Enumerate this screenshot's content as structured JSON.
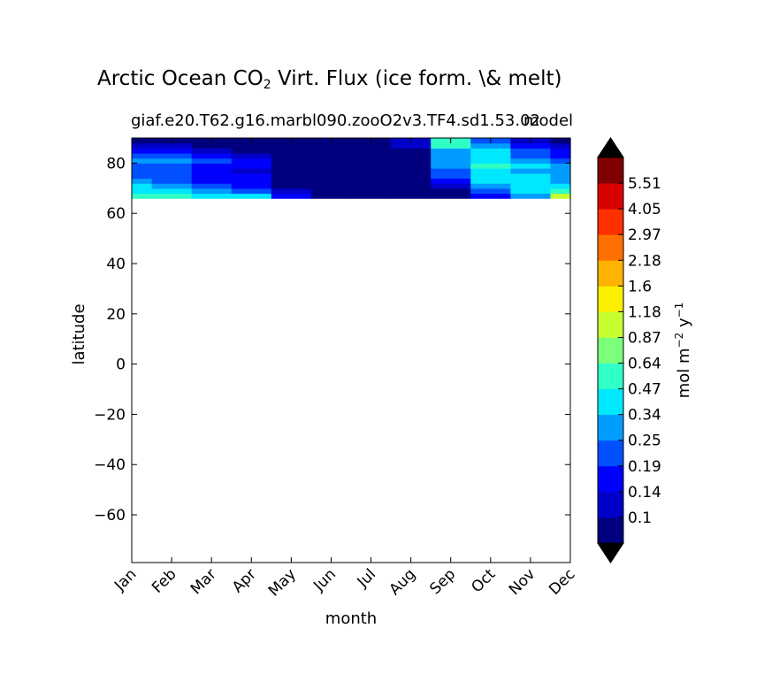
{
  "title_prefix": "Arctic Ocean CO",
  "title_sub": "2",
  "title_suffix": " Virt. Flux (ice form. \\& melt)",
  "subtitle_left": "giaf.e20.T62.g16.marbl090.zooO2v3.TF4.sd1.53.02",
  "subtitle_right": "model",
  "chart_data": {
    "type": "heatmap",
    "title": "Arctic Ocean CO2 Virt. Flux (ice form. \\& melt)",
    "xlabel": "month",
    "ylabel": "latitude",
    "x_ticks": [
      "Jan",
      "Feb",
      "Mar",
      "Apr",
      "May",
      "Jun",
      "Jul",
      "Aug",
      "Sep",
      "Oct",
      "Nov",
      "Dec"
    ],
    "y_ticks": [
      -60,
      -40,
      -20,
      0,
      20,
      40,
      60,
      80
    ],
    "ylim": [
      -79,
      90
    ],
    "data_lat_range": [
      66,
      90
    ],
    "colorbar": {
      "label": "mol m^-2 y^-1",
      "levels": [
        "0.1",
        "0.14",
        "0.19",
        "0.25",
        "0.34",
        "0.47",
        "0.64",
        "0.87",
        "1.18",
        "1.6",
        "2.18",
        "2.97",
        "4.05",
        "5.51"
      ],
      "colors": [
        "#00007f",
        "#0000c8",
        "#0000ff",
        "#0050ff",
        "#009cff",
        "#00e8ff",
        "#30ffc6",
        "#7cff7a",
        "#c6ff30",
        "#fbf000",
        "#ffb200",
        "#ff7000",
        "#ff3000",
        "#d90000",
        "#7f0000"
      ],
      "extend": "both"
    },
    "lats": [
      67,
      69,
      71,
      73,
      75,
      77,
      79,
      81,
      83,
      85,
      87,
      89
    ],
    "grid": [
      [
        6,
        6,
        5,
        5,
        2,
        0,
        0,
        0,
        0,
        2,
        4,
        8
      ],
      [
        5,
        5,
        4,
        3,
        1,
        0,
        0,
        0,
        0,
        3,
        5,
        6
      ],
      [
        5,
        4,
        3,
        2,
        0,
        0,
        0,
        0,
        1,
        4,
        5,
        5
      ],
      [
        4,
        3,
        2,
        2,
        0,
        0,
        0,
        0,
        2,
        5,
        5,
        4
      ],
      [
        3,
        3,
        2,
        2,
        0,
        0,
        0,
        0,
        3,
        5,
        5,
        4
      ],
      [
        3,
        3,
        2,
        1,
        0,
        0,
        0,
        0,
        3,
        5,
        4,
        4
      ],
      [
        3,
        3,
        2,
        2,
        0,
        0,
        0,
        0,
        4,
        6,
        5,
        4
      ],
      [
        4,
        4,
        3,
        2,
        0,
        0,
        0,
        0,
        4,
        5,
        4,
        3
      ],
      [
        3,
        3,
        2,
        1,
        0,
        0,
        0,
        0,
        4,
        5,
        3,
        2
      ],
      [
        2,
        2,
        1,
        0,
        0,
        0,
        0,
        0,
        4,
        5,
        3,
        2
      ],
      [
        1,
        1,
        0,
        0,
        0,
        0,
        0,
        1,
        6,
        4,
        2,
        1
      ],
      [
        0,
        0,
        0,
        0,
        0,
        0,
        0,
        1,
        6,
        3,
        1,
        0
      ]
    ]
  }
}
